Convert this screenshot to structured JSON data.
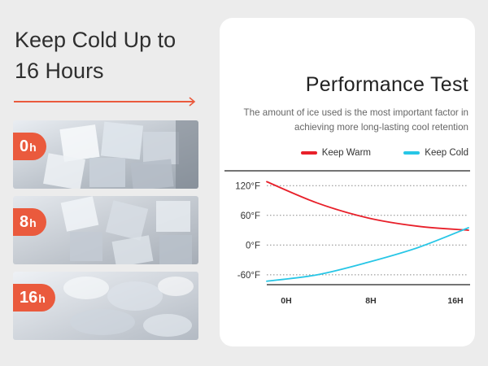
{
  "headline": {
    "line1": "Keep Cold Up to",
    "line2": "16 Hours"
  },
  "colors": {
    "accent": "#ea5a3d",
    "warm": "#e8202a",
    "cold": "#27c6e6"
  },
  "stages": [
    {
      "num": "0",
      "unit": "h"
    },
    {
      "num": "8",
      "unit": "h"
    },
    {
      "num": "16",
      "unit": "h"
    }
  ],
  "card": {
    "title": "Performance Test",
    "subtitle": "The amount of ice used is the most important factor in achieving more long-lasting cool retention"
  },
  "chart_data": {
    "type": "line",
    "title": "Performance Test",
    "x": [
      0,
      4,
      8,
      12,
      16
    ],
    "x_ticks": [
      "0H",
      "8H",
      "16H"
    ],
    "y_ticks": [
      "120°F",
      "60°F",
      "0°F",
      "-60°F"
    ],
    "y_tick_values": [
      120,
      60,
      0,
      -60
    ],
    "ylim": [
      -80,
      150
    ],
    "grid": "horizontal dotted",
    "legend_position": "top-right",
    "series": [
      {
        "name": "Keep Warm",
        "values": [
          128,
          85,
          55,
          38,
          30
        ]
      },
      {
        "name": "Keep Cold",
        "values": [
          -73,
          -60,
          -35,
          -5,
          35
        ]
      }
    ]
  }
}
